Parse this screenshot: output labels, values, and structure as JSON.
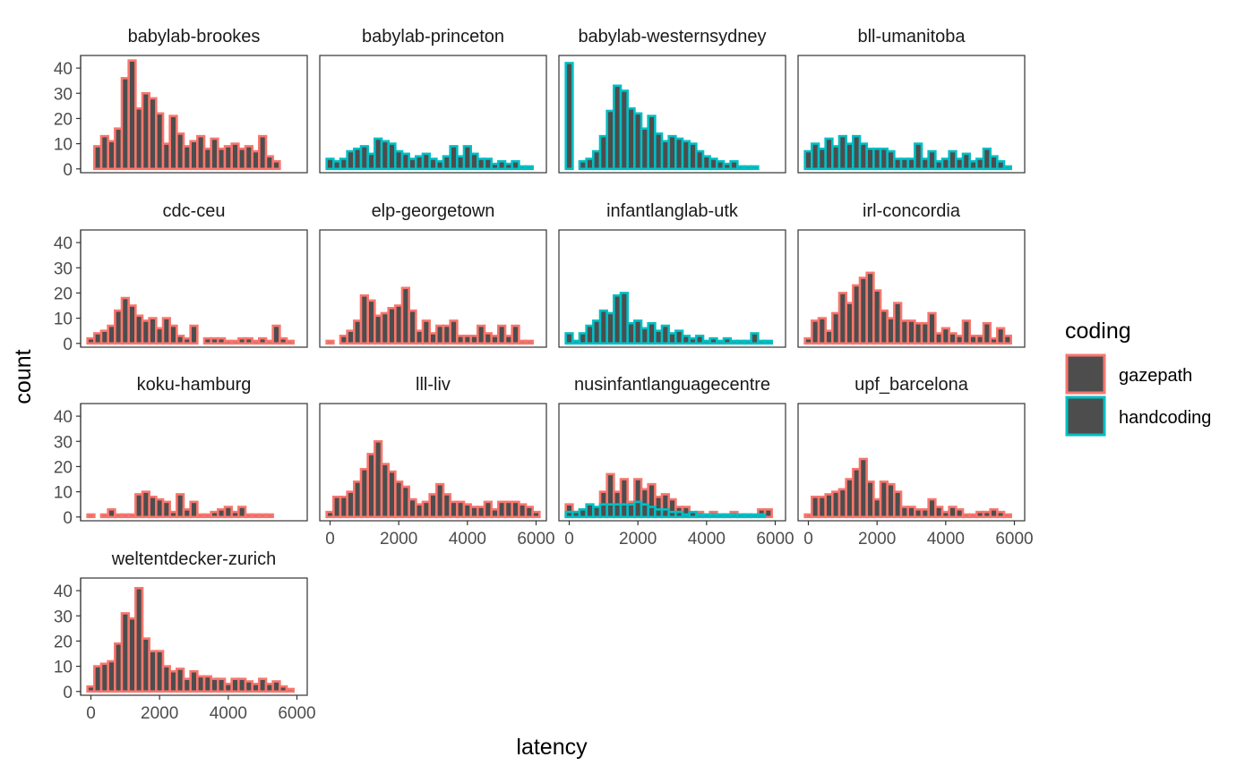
{
  "chart_data": {
    "type": "bar",
    "subtype": "faceted-histogram",
    "xlabel": "latency",
    "ylabel": "count",
    "xlim": [
      -300,
      6300
    ],
    "ylim": [
      -1.5,
      45
    ],
    "x_ticks": [
      0,
      2000,
      4000,
      6000
    ],
    "y_ticks": [
      0,
      10,
      20,
      30,
      40
    ],
    "bin_width": 200,
    "bin_start": -100,
    "grid": false,
    "legend": {
      "title": "coding",
      "position": "right",
      "entries": [
        {
          "label": "gazepath",
          "color": "#F8766D"
        },
        {
          "label": "handcoding",
          "color": "#00BFC4"
        }
      ]
    },
    "fill_color": "#4D4D4D",
    "facets": [
      {
        "name": "babylab-brookes",
        "coding": "gazepath",
        "values": [
          0,
          9,
          13,
          11,
          16,
          36,
          43,
          24,
          30,
          28,
          22,
          10,
          21,
          14,
          9,
          11,
          13,
          8,
          12,
          8,
          9,
          10,
          8,
          9,
          7,
          13,
          5,
          3,
          0,
          0,
          0
        ]
      },
      {
        "name": "babylab-princeton",
        "coding": "handcoding",
        "values": [
          4,
          3,
          4,
          7,
          8,
          9,
          6,
          12,
          11,
          10,
          7,
          6,
          4,
          5,
          6,
          4,
          3,
          5,
          9,
          5,
          9,
          6,
          4,
          4,
          2,
          3,
          2,
          3,
          1,
          1,
          0
        ]
      },
      {
        "name": "babylab-westernsydney",
        "coding": "handcoding",
        "values": [
          42,
          0,
          3,
          4,
          7,
          13,
          23,
          33,
          31,
          24,
          22,
          16,
          21,
          14,
          11,
          13,
          12,
          11,
          10,
          7,
          5,
          4,
          3,
          2,
          3,
          1,
          1,
          1,
          0,
          0,
          0
        ]
      },
      {
        "name": "bll-umanitoba",
        "coding": "handcoding",
        "values": [
          7,
          10,
          8,
          12,
          9,
          13,
          10,
          13,
          10,
          8,
          8,
          8,
          7,
          4,
          4,
          4,
          10,
          4,
          7,
          3,
          4,
          7,
          4,
          6,
          3,
          4,
          8,
          5,
          3,
          1,
          0
        ]
      },
      {
        "name": "cdc-ceu",
        "coding": "gazepath",
        "values": [
          2,
          4,
          5,
          7,
          13,
          18,
          15,
          11,
          9,
          10,
          6,
          10,
          7,
          3,
          2,
          7,
          0,
          2,
          2,
          2,
          1,
          1,
          2,
          2,
          1,
          2,
          1,
          7,
          2,
          1,
          0
        ]
      },
      {
        "name": "elp-georgetown",
        "coding": "gazepath",
        "values": [
          1,
          0,
          3,
          5,
          9,
          19,
          17,
          11,
          12,
          14,
          15,
          22,
          13,
          5,
          9,
          4,
          7,
          7,
          9,
          3,
          3,
          3,
          7,
          4,
          3,
          7,
          3,
          7,
          1,
          1,
          0
        ]
      },
      {
        "name": "infantlanglab-utk",
        "coding": "handcoding",
        "values": [
          4,
          1,
          4,
          7,
          9,
          13,
          12,
          19,
          20,
          8,
          9,
          6,
          8,
          5,
          7,
          4,
          5,
          3,
          2,
          3,
          1,
          2,
          1,
          2,
          1,
          1,
          1,
          4,
          1,
          1,
          0
        ]
      },
      {
        "name": "irl-concordia",
        "coding": "gazepath",
        "values": [
          2,
          9,
          10,
          5,
          12,
          20,
          16,
          23,
          26,
          28,
          21,
          13,
          10,
          16,
          9,
          9,
          8,
          8,
          12,
          4,
          6,
          4,
          3,
          9,
          3,
          3,
          8,
          2,
          6,
          3,
          0
        ]
      },
      {
        "name": "koku-hamburg",
        "coding": "gazepath",
        "values": [
          1,
          0,
          1,
          3,
          1,
          1,
          1,
          9,
          10,
          8,
          7,
          6,
          2,
          9,
          3,
          6,
          1,
          1,
          2,
          3,
          4,
          2,
          4,
          1,
          1,
          1,
          1,
          0,
          0,
          0,
          0
        ]
      },
      {
        "name": "lll-liv",
        "coding": "gazepath",
        "values": [
          2,
          8,
          8,
          10,
          14,
          19,
          25,
          30,
          21,
          18,
          14,
          12,
          7,
          5,
          6,
          9,
          13,
          9,
          6,
          6,
          5,
          4,
          4,
          6,
          3,
          6,
          6,
          6,
          5,
          4,
          2
        ]
      },
      {
        "name": "nusinfantlanguagecentre",
        "coding": "gazepath",
        "values": [
          5,
          2,
          3,
          3,
          1,
          10,
          17,
          10,
          15,
          6,
          15,
          11,
          13,
          8,
          9,
          7,
          4,
          4,
          1,
          2,
          1,
          2,
          1,
          1,
          2,
          1,
          1,
          0,
          3,
          3,
          0
        ]
      },
      {
        "name": "nusinfantlanguagecentre",
        "coding": "handcoding",
        "values": [
          2,
          2,
          3,
          5,
          4,
          5,
          5,
          5,
          5,
          5,
          6,
          5,
          4,
          3,
          3,
          2,
          2,
          1,
          2,
          1,
          1,
          1,
          1,
          1,
          1,
          1,
          1,
          1,
          1,
          0,
          0
        ]
      },
      {
        "name": "upf_barcelona",
        "coding": "gazepath",
        "values": [
          1,
          8,
          8,
          9,
          10,
          11,
          15,
          19,
          23,
          14,
          7,
          14,
          13,
          10,
          4,
          4,
          3,
          3,
          7,
          4,
          2,
          4,
          3,
          1,
          1,
          2,
          2,
          3,
          2,
          1,
          0
        ]
      },
      {
        "name": "weltentdecker-zurich",
        "coding": "gazepath",
        "values": [
          2,
          10,
          11,
          12,
          19,
          31,
          29,
          41,
          21,
          16,
          16,
          10,
          8,
          9,
          5,
          8,
          6,
          6,
          5,
          5,
          3,
          5,
          5,
          4,
          3,
          5,
          3,
          4,
          2,
          1,
          0
        ]
      }
    ]
  }
}
